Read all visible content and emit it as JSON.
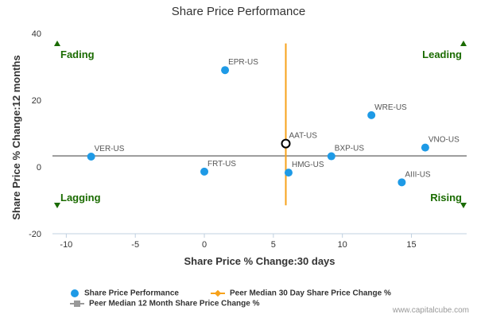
{
  "chart_data": {
    "type": "scatter",
    "title": "Share Price Performance",
    "xlabel": "Share Price % Change:30 days",
    "ylabel": "Share Price % Change:12 months",
    "xlim": [
      -11,
      19
    ],
    "ylim": [
      -20,
      40
    ],
    "xticks": [
      -10,
      -5,
      0,
      5,
      10,
      15
    ],
    "yticks": [
      -20,
      0,
      20,
      40
    ],
    "grid": false,
    "points": [
      {
        "label": "EPR-US",
        "x": 1.5,
        "y": 29,
        "highlight": false
      },
      {
        "label": "WRE-US",
        "x": 12.1,
        "y": 15.5,
        "highlight": false
      },
      {
        "label": "AAT-US",
        "x": 5.9,
        "y": 7,
        "highlight": true
      },
      {
        "label": "VNO-US",
        "x": 16,
        "y": 5.8,
        "highlight": false
      },
      {
        "label": "VER-US",
        "x": -8.2,
        "y": 3.1,
        "highlight": false
      },
      {
        "label": "BXP-US",
        "x": 9.2,
        "y": 3.2,
        "highlight": false
      },
      {
        "label": "FRT-US",
        "x": 0,
        "y": -1.4,
        "highlight": false
      },
      {
        "label": "HMG-US",
        "x": 6.1,
        "y": -1.7,
        "highlight": false
      },
      {
        "label": "AIII-US",
        "x": 14.3,
        "y": -4.6,
        "highlight": false
      }
    ],
    "peer_median_30_day": 5.9,
    "peer_median_12_month": 3.3,
    "median_v_range": [
      -11.5,
      37
    ],
    "quadrants": [
      {
        "label": "Fading",
        "position": "top-left",
        "arrow": "up"
      },
      {
        "label": "Leading",
        "position": "top-right",
        "arrow": "up"
      },
      {
        "label": "Lagging",
        "position": "bottom-left",
        "arrow": "down"
      },
      {
        "label": "Rising",
        "position": "bottom-right",
        "arrow": "down"
      }
    ],
    "legend": {
      "placement": "bottom-left",
      "items": [
        {
          "label": "Share Price Performance",
          "kind": "dot"
        },
        {
          "label": "Peer Median 30 Day Share Price Change %",
          "kind": "orange-line"
        },
        {
          "label": "Peer Median 12 Month Share Price Change %",
          "kind": "gray-line"
        }
      ]
    }
  },
  "colors": {
    "point": "#1e9ae6",
    "highlight_ring": "#000000",
    "median_30": "#f7a21b",
    "median_12": "#999999",
    "quadrant_text": "#1a6b00",
    "axis_text": "#333333",
    "point_label": "#555555"
  },
  "credit": "www.capitalcube.com"
}
